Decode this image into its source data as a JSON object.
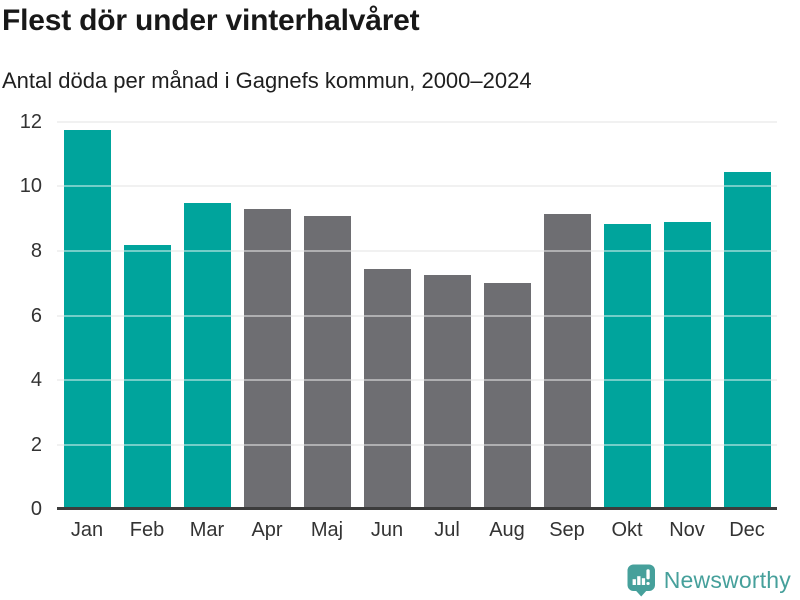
{
  "header": {
    "title": "Flest dör under vinterhalvåret",
    "subtitle": "Antal döda per månad i Gagnefs kommun, 2000–2024"
  },
  "chart_data": {
    "type": "bar",
    "title": "Flest dör under vinterhalvåret",
    "subtitle": "Antal döda per månad i Gagnefs kommun, 2000–2024",
    "categories": [
      "Jan",
      "Feb",
      "Mar",
      "Apr",
      "Maj",
      "Jun",
      "Jul",
      "Aug",
      "Sep",
      "Okt",
      "Nov",
      "Dec"
    ],
    "values": [
      11.75,
      8.2,
      9.5,
      9.3,
      9.1,
      7.45,
      7.25,
      7.0,
      9.15,
      8.85,
      8.9,
      10.45
    ],
    "highlighted": [
      true,
      true,
      true,
      false,
      false,
      false,
      false,
      false,
      false,
      true,
      true,
      true
    ],
    "xlabel": "",
    "ylabel": "",
    "ylim": [
      0,
      12
    ],
    "yticks": [
      0,
      2,
      4,
      6,
      8,
      10,
      12
    ],
    "grid": "horizontal",
    "legend": "none",
    "colors": {
      "highlight_teal": "#00a49c",
      "base_gray": "#6e6e72",
      "gridline": "#e5e5e5",
      "axis_line": "#3c3c3c",
      "tick_label": "#333333"
    }
  },
  "footer": {
    "logo_text": "Newsworthy",
    "logo_color": "#46a09b",
    "logo_icon": "bar-chart-speech-bubble-icon"
  }
}
